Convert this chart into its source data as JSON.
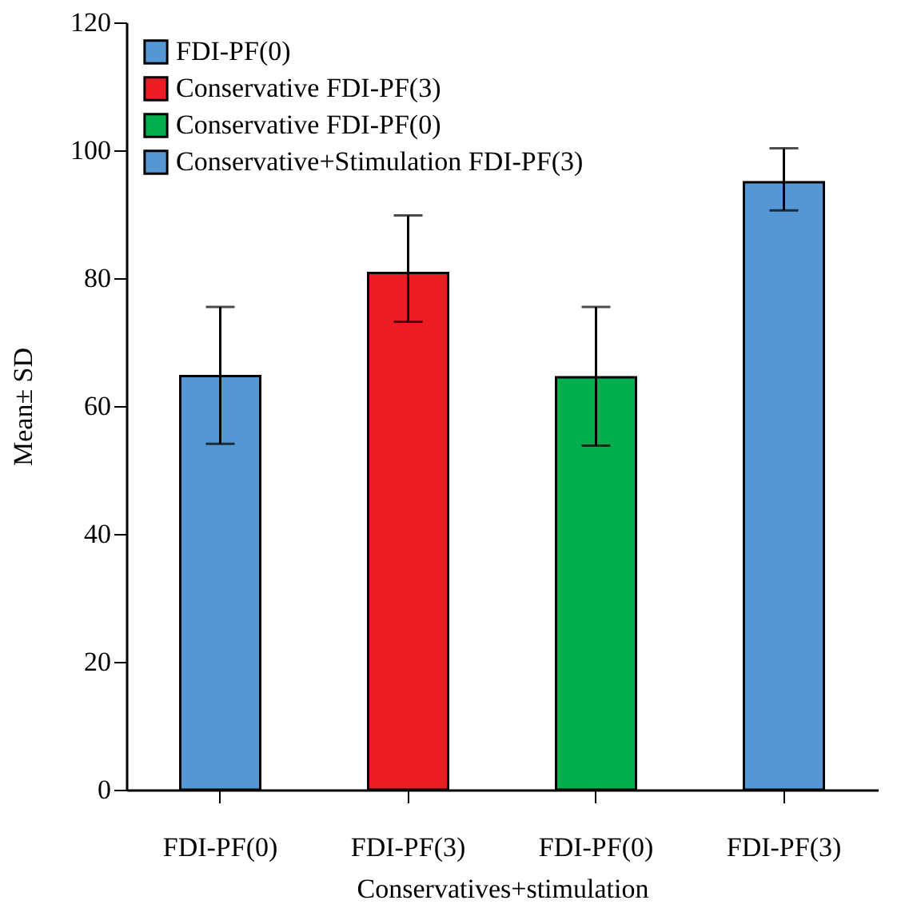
{
  "chart_data": {
    "type": "bar",
    "xlabel": "Conservatives+stimulation",
    "ylabel": "Mean± SD",
    "categories": [
      "FDI-PF(0)",
      "FDI-PF(3)",
      "FDI-PF(0)",
      "FDI-PF(3)"
    ],
    "series": [
      {
        "name": "FDI-PF(0)",
        "color": "#5497d3",
        "values": [
          64.7,
          null,
          null,
          null
        ],
        "errors": [
          [
            54.1,
            75.5
          ],
          null,
          null,
          null
        ]
      },
      {
        "name": "Conservative FDI-PF(3)",
        "color": "#ec1c24",
        "values": [
          null,
          80.8,
          null,
          null
        ],
        "errors": [
          null,
          [
            73.2,
            89.8
          ],
          null,
          null
        ]
      },
      {
        "name": "Conservative FDI-PF(0)",
        "color": "#00ae4d",
        "values": [
          null,
          null,
          64.5,
          null
        ],
        "errors": [
          null,
          null,
          [
            53.8,
            75.5
          ],
          null
        ]
      },
      {
        "name": "Conservative+Stimulation FDI-PF(3)",
        "color": "#5497d4",
        "values": [
          null,
          null,
          null,
          95.0
        ],
        "errors": [
          null,
          null,
          null,
          [
            90.6,
            100.3
          ]
        ]
      }
    ],
    "ylim": [
      0,
      120
    ],
    "yticks": [
      0,
      20,
      40,
      60,
      80,
      100,
      120
    ],
    "grid": false,
    "legend": "top left"
  }
}
